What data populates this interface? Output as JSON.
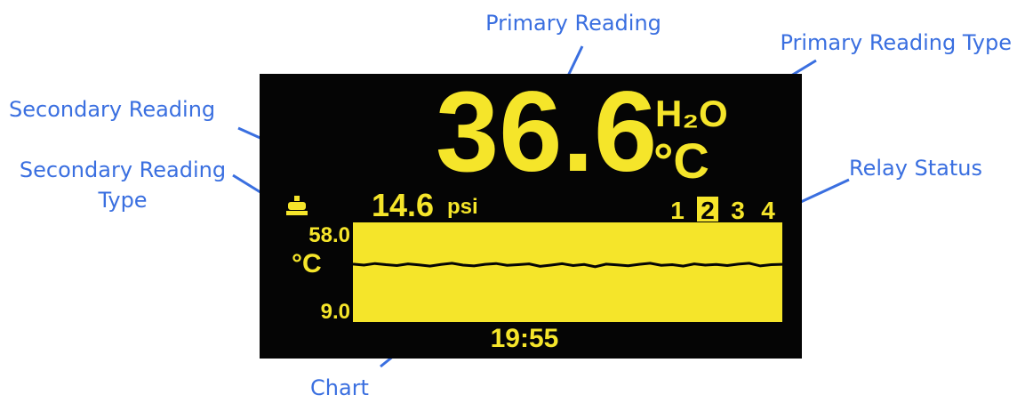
{
  "annotations": {
    "primary_reading": "Primary Reading",
    "primary_reading_type": "Primary Reading Type",
    "secondary_reading": "Secondary Reading",
    "secondary_reading_type": [
      "Secondary Reading",
      "Type"
    ],
    "relay_status": "Relay Status",
    "chart": "Chart"
  },
  "display": {
    "primary_value": "36.6",
    "primary_type": "H₂O",
    "primary_unit": "°C",
    "secondary_value": "14.6",
    "secondary_unit": "psi",
    "relays": [
      {
        "label": "1",
        "active": false
      },
      {
        "label": "2",
        "active": true
      },
      {
        "label": "3",
        "active": false
      },
      {
        "label": "4",
        "active": false
      }
    ],
    "chart": {
      "ylim": [
        {
          "value": 9.0,
          "label": "9.0"
        },
        {
          "value": 58.0,
          "label": "58.0"
        }
      ],
      "unit": "°C",
      "values": [
        37.5,
        37.0,
        37.8,
        37.2,
        36.8,
        37.6,
        37.1,
        36.5,
        37.3,
        37.9,
        37.0,
        36.6,
        37.4,
        37.8,
        36.9,
        37.2,
        37.6,
        36.4,
        37.0,
        37.7,
        36.8,
        37.3,
        36.2,
        37.5,
        37.1,
        36.7,
        37.4,
        37.9,
        36.9,
        37.2,
        36.5,
        37.6,
        37.0,
        37.3,
        36.8,
        37.5,
        37.9,
        36.6,
        37.2,
        37.4
      ],
      "time": "19:55"
    }
  }
}
